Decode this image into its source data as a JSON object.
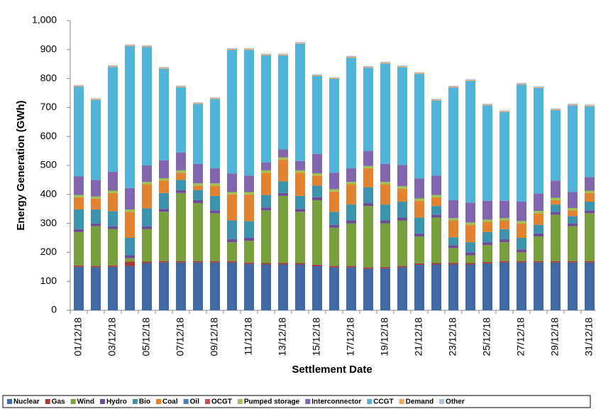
{
  "chart_data": {
    "type": "stacked-bar",
    "x_label": "Settlement Date",
    "y_label": "Energy Generation (GWh)",
    "categories": [
      "01/12/18",
      null,
      "03/12/18",
      null,
      "05/12/18",
      null,
      "07/12/18",
      null,
      "09/12/18",
      null,
      "11/12/18",
      null,
      "13/12/18",
      null,
      "15/12/18",
      null,
      "17/12/18",
      null,
      "19/12/18",
      null,
      "21/12/18",
      null,
      "23/12/18",
      null,
      "25/12/18",
      null,
      "27/12/18",
      null,
      "29/12/18",
      null,
      "31/12/18"
    ],
    "ylim": [
      0,
      1000
    ],
    "yticks": [
      0,
      100,
      200,
      300,
      400,
      500,
      600,
      700,
      800,
      900,
      {
        "value": 1000,
        "label": "1,000"
      }
    ],
    "legend": "bottom",
    "series": [
      {
        "name": "Nuclear",
        "color": "#3f6aa6",
        "values": [
          150,
          148,
          150,
          153,
          163,
          165,
          165,
          165,
          165,
          165,
          160,
          158,
          158,
          158,
          152,
          148,
          148,
          143,
          145,
          148,
          157,
          158,
          158,
          158,
          162,
          165,
          165,
          165,
          165,
          165,
          165
        ]
      },
      {
        "name": "Gas",
        "color": "#a83a3a",
        "values": [
          5,
          5,
          5,
          15,
          5,
          5,
          5,
          5,
          5,
          5,
          5,
          5,
          5,
          5,
          5,
          5,
          5,
          5,
          5,
          5,
          5,
          5,
          5,
          5,
          5,
          5,
          5,
          5,
          5,
          5,
          5
        ]
      },
      {
        "name": "Wind",
        "color": "#78a03c",
        "values": [
          115,
          137,
          125,
          12,
          112,
          170,
          235,
          200,
          165,
          65,
          75,
          182,
          232,
          177,
          223,
          132,
          147,
          212,
          150,
          157,
          93,
          157,
          52,
          27,
          58,
          65,
          30,
          85,
          160,
          120,
          165
        ]
      },
      {
        "name": "Hydro",
        "color": "#6f4a98",
        "values": [
          10,
          10,
          10,
          10,
          10,
          10,
          10,
          10,
          10,
          10,
          10,
          10,
          10,
          10,
          10,
          10,
          10,
          10,
          10,
          10,
          10,
          10,
          10,
          10,
          10,
          10,
          10,
          10,
          10,
          10,
          10
        ]
      },
      {
        "name": "Bio",
        "color": "#3a94ad",
        "values": [
          68,
          48,
          52,
          60,
          62,
          55,
          35,
          35,
          50,
          65,
          58,
          43,
          40,
          45,
          40,
          45,
          55,
          55,
          55,
          55,
          55,
          30,
          27,
          35,
          35,
          35,
          40,
          30,
          25,
          25,
          30
        ]
      },
      {
        "name": "Coal",
        "color": "#e3832f",
        "values": [
          42,
          37,
          63,
          90,
          83,
          43,
          25,
          15,
          35,
          90,
          92,
          77,
          75,
          80,
          35,
          70,
          70,
          65,
          70,
          45,
          58,
          30,
          58,
          60,
          35,
          30,
          50,
          40,
          15,
          20,
          30
        ]
      },
      {
        "name": "Oil",
        "color": "#4a7ec0",
        "values": [
          0,
          0,
          0,
          0,
          0,
          0,
          0,
          0,
          0,
          0,
          0,
          0,
          0,
          0,
          0,
          0,
          0,
          0,
          0,
          0,
          0,
          0,
          0,
          0,
          0,
          0,
          0,
          0,
          0,
          0,
          0
        ]
      },
      {
        "name": "OCGT",
        "color": "#cf4b4b",
        "values": [
          0,
          0,
          0,
          0,
          0,
          0,
          0,
          0,
          0,
          0,
          0,
          0,
          0,
          0,
          0,
          0,
          0,
          0,
          0,
          0,
          0,
          0,
          0,
          0,
          0,
          0,
          0,
          0,
          0,
          0,
          0
        ]
      },
      {
        "name": "Pumped storage",
        "color": "#9cc44f",
        "values": [
          8,
          8,
          8,
          8,
          8,
          8,
          8,
          8,
          8,
          8,
          8,
          8,
          8,
          8,
          8,
          8,
          8,
          8,
          8,
          8,
          8,
          8,
          8,
          8,
          8,
          8,
          8,
          8,
          8,
          8,
          8
        ]
      },
      {
        "name": "Interconnector",
        "color": "#8366ae",
        "values": [
          64,
          57,
          65,
          74,
          57,
          62,
          62,
          67,
          52,
          64,
          57,
          27,
          27,
          32,
          67,
          57,
          47,
          52,
          62,
          74,
          69,
          67,
          62,
          69,
          65,
          60,
          67,
          60,
          60,
          55,
          47
        ]
      },
      {
        "name": "CCGT",
        "color": "#4fb4d8",
        "values": [
          310,
          276,
          362,
          490,
          409,
          316,
          225,
          207,
          239,
          427,
          434,
          370,
          325,
          405,
          269,
          324,
          382,
          287,
          347,
          337,
          361,
          259,
          389,
          420,
          329,
          306,
          404,
          364,
          243,
          299,
          244
        ]
      },
      {
        "name": "Demand",
        "color": "#f5a25c",
        "values": [
          3,
          3,
          3,
          3,
          3,
          3,
          3,
          3,
          3,
          3,
          3,
          3,
          3,
          3,
          3,
          3,
          3,
          3,
          3,
          3,
          3,
          3,
          3,
          3,
          3,
          3,
          3,
          3,
          3,
          3,
          3
        ]
      },
      {
        "name": "Other",
        "color": "#aac2e2",
        "values": [
          3,
          3,
          3,
          3,
          3,
          3,
          3,
          3,
          3,
          3,
          3,
          3,
          3,
          3,
          3,
          3,
          3,
          3,
          3,
          3,
          3,
          3,
          3,
          3,
          3,
          3,
          3,
          3,
          3,
          3,
          3
        ]
      }
    ]
  }
}
